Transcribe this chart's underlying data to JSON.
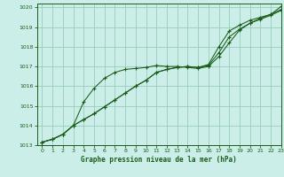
{
  "title": "Graphe pression niveau de la mer (hPa)",
  "bg_color": "#cceee8",
  "grid_color": "#99ccbb",
  "line_color": "#1a5c1a",
  "xlim": [
    -0.5,
    23
  ],
  "ylim": [
    1013,
    1020.2
  ],
  "xticks": [
    0,
    1,
    2,
    3,
    4,
    5,
    6,
    7,
    8,
    9,
    10,
    11,
    12,
    13,
    14,
    15,
    16,
    17,
    18,
    19,
    20,
    21,
    22,
    23
  ],
  "yticks": [
    1013,
    1014,
    1015,
    1016,
    1017,
    1018,
    1019,
    1020
  ],
  "series1_x": [
    0,
    1,
    2,
    3,
    4,
    5,
    6,
    7,
    8,
    9,
    10,
    11,
    12,
    13,
    14,
    15,
    16,
    17,
    18,
    19,
    20,
    21,
    22,
    23
  ],
  "series1_y": [
    1013.15,
    1013.3,
    1013.55,
    1014.0,
    1015.2,
    1015.9,
    1016.4,
    1016.7,
    1016.85,
    1016.9,
    1016.95,
    1017.05,
    1017.0,
    1017.0,
    1016.95,
    1016.9,
    1017.0,
    1017.5,
    1018.2,
    1018.85,
    1019.2,
    1019.4,
    1019.6,
    1019.85
  ],
  "series2_x": [
    0,
    1,
    2,
    3,
    4,
    5,
    6,
    7,
    8,
    9,
    10,
    11,
    12,
    13,
    14,
    15,
    16,
    17,
    18,
    19,
    20,
    21,
    22,
    23
  ],
  "series2_y": [
    1013.15,
    1013.3,
    1013.55,
    1014.0,
    1014.3,
    1014.6,
    1014.95,
    1015.3,
    1015.65,
    1016.0,
    1016.3,
    1016.7,
    1016.85,
    1016.95,
    1017.0,
    1016.95,
    1017.05,
    1017.7,
    1018.5,
    1018.9,
    1019.2,
    1019.45,
    1019.65,
    1020.05
  ],
  "series3_x": [
    0,
    1,
    2,
    3,
    4,
    5,
    6,
    7,
    8,
    9,
    10,
    11,
    12,
    13,
    14,
    15,
    16,
    17,
    18,
    19,
    20,
    21,
    22,
    23
  ],
  "series3_y": [
    1013.15,
    1013.3,
    1013.55,
    1014.0,
    1014.3,
    1014.6,
    1014.95,
    1015.3,
    1015.65,
    1016.0,
    1016.3,
    1016.7,
    1016.85,
    1016.95,
    1017.0,
    1016.95,
    1017.1,
    1018.0,
    1018.8,
    1019.1,
    1019.35,
    1019.5,
    1019.65,
    1019.9
  ]
}
